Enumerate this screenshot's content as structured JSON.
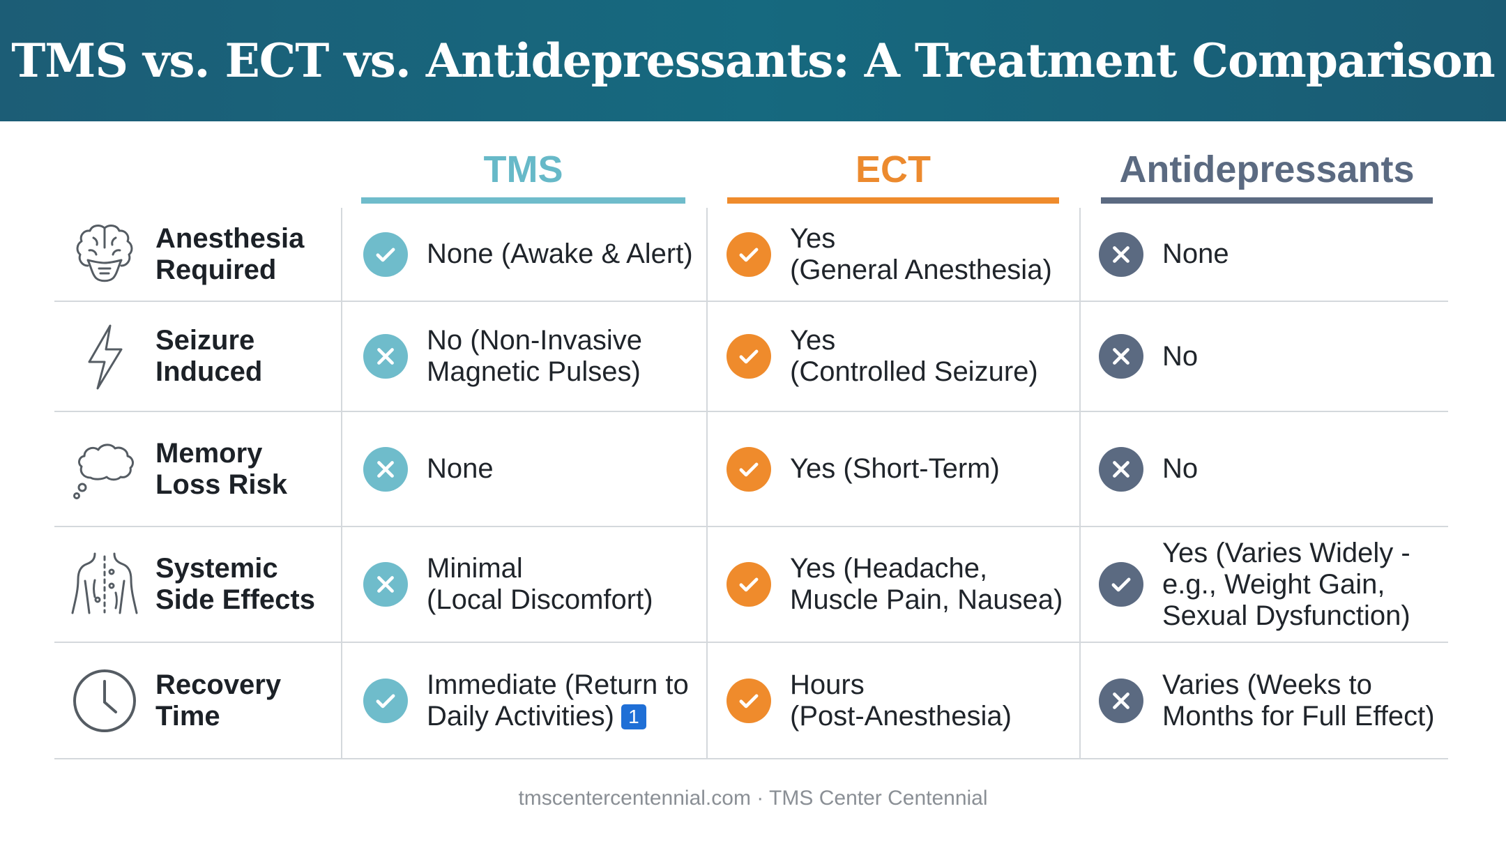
{
  "title": "TMS vs. ECT vs. Antidepressants: A Treatment Comparison",
  "columns": {
    "tms": "TMS",
    "ect": "ECT",
    "anti": "Antidepressants"
  },
  "colors": {
    "banner": "#1a5f77",
    "tms": "#6fbccb",
    "ect": "#ef8b2c",
    "anti": "#5b6a81",
    "reference_badge": "#1f6fd6"
  },
  "rows": [
    {
      "label": [
        "Anesthesia",
        "Required"
      ],
      "icon": "brain-icon",
      "tms": {
        "mark": "check",
        "lines": [
          "None (Awake & Alert)"
        ]
      },
      "ect": {
        "mark": "check",
        "lines": [
          "Yes",
          "(General Anesthesia)"
        ]
      },
      "anti": {
        "mark": "cross",
        "lines": [
          "None"
        ]
      }
    },
    {
      "label": [
        "Seizure",
        "Induced"
      ],
      "icon": "lightning-icon",
      "tms": {
        "mark": "cross",
        "lines": [
          "No (Non-Invasive",
          "Magnetic Pulses)"
        ]
      },
      "ect": {
        "mark": "check",
        "lines": [
          "Yes",
          "(Controlled Seizure)"
        ]
      },
      "anti": {
        "mark": "cross",
        "lines": [
          "No"
        ]
      }
    },
    {
      "label": [
        "Memory",
        "Loss Risk"
      ],
      "icon": "thought-cloud-icon",
      "tms": {
        "mark": "cross",
        "lines": [
          "None"
        ]
      },
      "ect": {
        "mark": "check",
        "lines": [
          "Yes (Short-Term)"
        ]
      },
      "anti": {
        "mark": "cross",
        "lines": [
          "No"
        ]
      }
    },
    {
      "label": [
        "Systemic",
        "Side Effects"
      ],
      "icon": "body-icon",
      "tms": {
        "mark": "cross",
        "lines": [
          "Minimal",
          "(Local Discomfort)"
        ]
      },
      "ect": {
        "mark": "check",
        "lines": [
          "Yes (Headache,",
          "Muscle Pain, Nausea)"
        ]
      },
      "anti": {
        "mark": "check",
        "lines": [
          "Yes (Varies Widely -",
          "e.g., Weight Gain,",
          "Sexual Dysfunction)"
        ]
      }
    },
    {
      "label": [
        "Recovery",
        "Time"
      ],
      "icon": "clock-icon",
      "tms": {
        "mark": "check",
        "lines": [
          "Immediate (Return to",
          "Daily Activities)"
        ],
        "reference": "1"
      },
      "ect": {
        "mark": "check",
        "lines": [
          "Hours",
          "(Post-Anesthesia)"
        ]
      },
      "anti": {
        "mark": "cross",
        "lines": [
          "Varies (Weeks to",
          "Months for Full Effect)"
        ]
      }
    }
  ],
  "footer": "tmscentercentennial.com · TMS Center Centennial"
}
